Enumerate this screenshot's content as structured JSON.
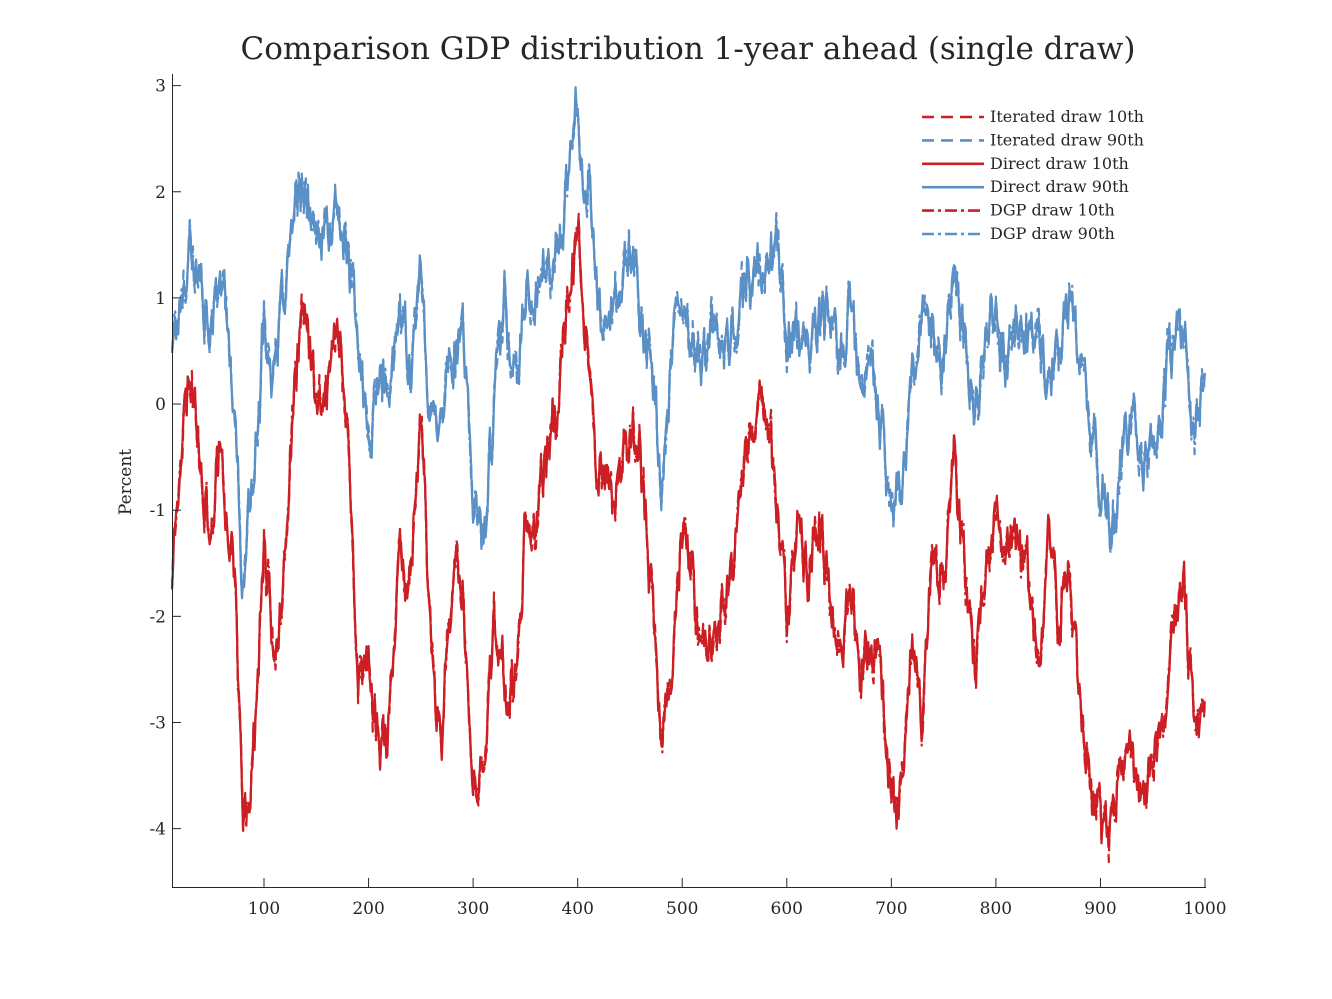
{
  "chart_data": {
    "type": "line",
    "title": "Comparison GDP distribution 1-year ahead (single draw)",
    "xlabel": "",
    "ylabel": "Percent",
    "xlim": [
      12,
      1000
    ],
    "ylim": [
      -4.55,
      3.1
    ],
    "xticks": [
      100,
      200,
      300,
      400,
      500,
      600,
      700,
      800,
      900,
      1000
    ],
    "yticks": [
      -4,
      -3,
      -2,
      -1,
      0,
      1,
      2,
      3
    ],
    "grid": false,
    "legend_position": "top-right",
    "colors": {
      "red": "#cc1f24",
      "blue": "#5a90c5",
      "axis": "#262626"
    },
    "series": [
      {
        "name": "Iterated draw 10th",
        "color": "#cc1f24",
        "style": "dashed"
      },
      {
        "name": "Iterated draw 90th",
        "color": "#5a90c5",
        "style": "dashed"
      },
      {
        "name": "Direct draw 10th",
        "color": "#cc1f24",
        "style": "solid"
      },
      {
        "name": "Direct draw 90th",
        "color": "#5a90c5",
        "style": "solid"
      },
      {
        "name": "DGP draw 10th",
        "color": "#cc1f24",
        "style": "dashdot"
      },
      {
        "name": "DGP draw 90th",
        "color": "#5a90c5",
        "style": "dashdot"
      }
    ],
    "trend_90th": [
      [
        12,
        0.6
      ],
      [
        20,
        1.0
      ],
      [
        30,
        1.6
      ],
      [
        40,
        1.2
      ],
      [
        50,
        0.6
      ],
      [
        58,
        1.4
      ],
      [
        65,
        0.8
      ],
      [
        72,
        -0.2
      ],
      [
        80,
        -1.6
      ],
      [
        90,
        -0.6
      ],
      [
        100,
        0.8
      ],
      [
        110,
        0.2
      ],
      [
        120,
        1.0
      ],
      [
        130,
        1.8
      ],
      [
        140,
        2.1
      ],
      [
        150,
        1.5
      ],
      [
        160,
        1.6
      ],
      [
        170,
        1.8
      ],
      [
        180,
        1.4
      ],
      [
        190,
        0.5
      ],
      [
        200,
        -0.4
      ],
      [
        210,
        0.3
      ],
      [
        220,
        0.0
      ],
      [
        230,
        0.9
      ],
      [
        240,
        0.5
      ],
      [
        250,
        1.2
      ],
      [
        260,
        -0.2
      ],
      [
        270,
        0.1
      ],
      [
        280,
        0.5
      ],
      [
        290,
        0.6
      ],
      [
        300,
        -1.0
      ],
      [
        310,
        -1.3
      ],
      [
        320,
        0.0
      ],
      [
        330,
        0.8
      ],
      [
        340,
        0.4
      ],
      [
        350,
        1.0
      ],
      [
        360,
        1.1
      ],
      [
        370,
        1.2
      ],
      [
        380,
        1.3
      ],
      [
        390,
        2.2
      ],
      [
        398,
        2.8
      ],
      [
        405,
        2.2
      ],
      [
        412,
        1.8
      ],
      [
        420,
        0.8
      ],
      [
        430,
        0.9
      ],
      [
        440,
        1.3
      ],
      [
        450,
        1.4
      ],
      [
        460,
        0.9
      ],
      [
        470,
        0.3
      ],
      [
        480,
        -0.7
      ],
      [
        490,
        0.2
      ],
      [
        500,
        1.0
      ],
      [
        510,
        0.4
      ],
      [
        520,
        0.6
      ],
      [
        530,
        0.7
      ],
      [
        540,
        0.4
      ],
      [
        550,
        0.6
      ],
      [
        560,
        1.0
      ],
      [
        570,
        1.2
      ],
      [
        580,
        1.4
      ],
      [
        590,
        1.6
      ],
      [
        600,
        0.7
      ],
      [
        610,
        0.8
      ],
      [
        620,
        0.4
      ],
      [
        630,
        0.7
      ],
      [
        640,
        0.9
      ],
      [
        650,
        0.5
      ],
      [
        660,
        1.0
      ],
      [
        670,
        0.1
      ],
      [
        680,
        0.5
      ],
      [
        690,
        -0.2
      ],
      [
        700,
        -1.1
      ],
      [
        710,
        -0.8
      ],
      [
        720,
        0.2
      ],
      [
        730,
        0.8
      ],
      [
        740,
        1.0
      ],
      [
        750,
        0.3
      ],
      [
        760,
        1.4
      ],
      [
        770,
        0.6
      ],
      [
        780,
        -0.1
      ],
      [
        790,
        0.6
      ],
      [
        800,
        0.9
      ],
      [
        810,
        0.5
      ],
      [
        820,
        0.8
      ],
      [
        830,
        0.6
      ],
      [
        840,
        0.7
      ],
      [
        850,
        0.0
      ],
      [
        860,
        0.5
      ],
      [
        870,
        1.0
      ],
      [
        880,
        0.5
      ],
      [
        890,
        -0.2
      ],
      [
        900,
        -0.8
      ],
      [
        910,
        -1.3
      ],
      [
        920,
        -0.5
      ],
      [
        930,
        -0.2
      ],
      [
        940,
        -0.8
      ],
      [
        950,
        -0.4
      ],
      [
        960,
        -0.2
      ],
      [
        970,
        0.6
      ],
      [
        980,
        0.7
      ],
      [
        990,
        -0.3
      ],
      [
        1000,
        0.0
      ]
    ],
    "trend_10th": [
      [
        12,
        -1.6
      ],
      [
        20,
        -0.4
      ],
      [
        30,
        0.3
      ],
      [
        40,
        -0.5
      ],
      [
        50,
        -1.3
      ],
      [
        58,
        -0.3
      ],
      [
        65,
        -1.2
      ],
      [
        72,
        -1.6
      ],
      [
        80,
        -4.2
      ],
      [
        90,
        -3.3
      ],
      [
        100,
        -1.3
      ],
      [
        110,
        -2.5
      ],
      [
        120,
        -1.2
      ],
      [
        130,
        0.4
      ],
      [
        140,
        0.9
      ],
      [
        150,
        0.1
      ],
      [
        160,
        0.2
      ],
      [
        170,
        0.6
      ],
      [
        180,
        0.0
      ],
      [
        190,
        -2.6
      ],
      [
        200,
        -2.5
      ],
      [
        210,
        -3.2
      ],
      [
        220,
        -2.8
      ],
      [
        230,
        -1.3
      ],
      [
        240,
        -1.6
      ],
      [
        250,
        -0.3
      ],
      [
        260,
        -2.4
      ],
      [
        270,
        -2.9
      ],
      [
        280,
        -1.6
      ],
      [
        290,
        -1.8
      ],
      [
        300,
        -3.8
      ],
      [
        310,
        -3.6
      ],
      [
        320,
        -2.0
      ],
      [
        330,
        -2.6
      ],
      [
        340,
        -2.8
      ],
      [
        350,
        -1.2
      ],
      [
        360,
        -1.2
      ],
      [
        370,
        -0.5
      ],
      [
        380,
        0.0
      ],
      [
        390,
        1.0
      ],
      [
        398,
        1.6
      ],
      [
        405,
        1.1
      ],
      [
        412,
        0.2
      ],
      [
        420,
        -0.7
      ],
      [
        430,
        -1.0
      ],
      [
        440,
        -0.8
      ],
      [
        450,
        -0.3
      ],
      [
        460,
        -0.5
      ],
      [
        470,
        -1.8
      ],
      [
        480,
        -3.3
      ],
      [
        490,
        -2.4
      ],
      [
        500,
        -1.1
      ],
      [
        510,
        -1.7
      ],
      [
        520,
        -2.2
      ],
      [
        530,
        -2.4
      ],
      [
        540,
        -1.9
      ],
      [
        550,
        -1.3
      ],
      [
        560,
        -0.5
      ],
      [
        570,
        -0.2
      ],
      [
        580,
        0.0
      ],
      [
        590,
        -0.8
      ],
      [
        600,
        -1.9
      ],
      [
        610,
        -1.2
      ],
      [
        620,
        -1.6
      ],
      [
        630,
        -1.1
      ],
      [
        640,
        -1.7
      ],
      [
        650,
        -2.5
      ],
      [
        660,
        -1.7
      ],
      [
        670,
        -2.6
      ],
      [
        680,
        -2.3
      ],
      [
        690,
        -2.3
      ],
      [
        700,
        -3.7
      ],
      [
        710,
        -3.5
      ],
      [
        720,
        -2.2
      ],
      [
        730,
        -2.9
      ],
      [
        740,
        -1.4
      ],
      [
        750,
        -1.6
      ],
      [
        760,
        -0.4
      ],
      [
        770,
        -1.5
      ],
      [
        780,
        -2.4
      ],
      [
        790,
        -1.6
      ],
      [
        800,
        -1.3
      ],
      [
        810,
        -1.5
      ],
      [
        820,
        -1.1
      ],
      [
        830,
        -1.6
      ],
      [
        840,
        -2.4
      ],
      [
        850,
        -1.4
      ],
      [
        860,
        -2.2
      ],
      [
        870,
        -1.5
      ],
      [
        880,
        -2.7
      ],
      [
        890,
        -3.4
      ],
      [
        900,
        -3.9
      ],
      [
        910,
        -4.1
      ],
      [
        920,
        -3.6
      ],
      [
        930,
        -3.2
      ],
      [
        940,
        -3.7
      ],
      [
        950,
        -3.2
      ],
      [
        960,
        -3.0
      ],
      [
        970,
        -1.8
      ],
      [
        980,
        -1.9
      ],
      [
        990,
        -3.0
      ],
      [
        1000,
        -3.0
      ]
    ]
  }
}
